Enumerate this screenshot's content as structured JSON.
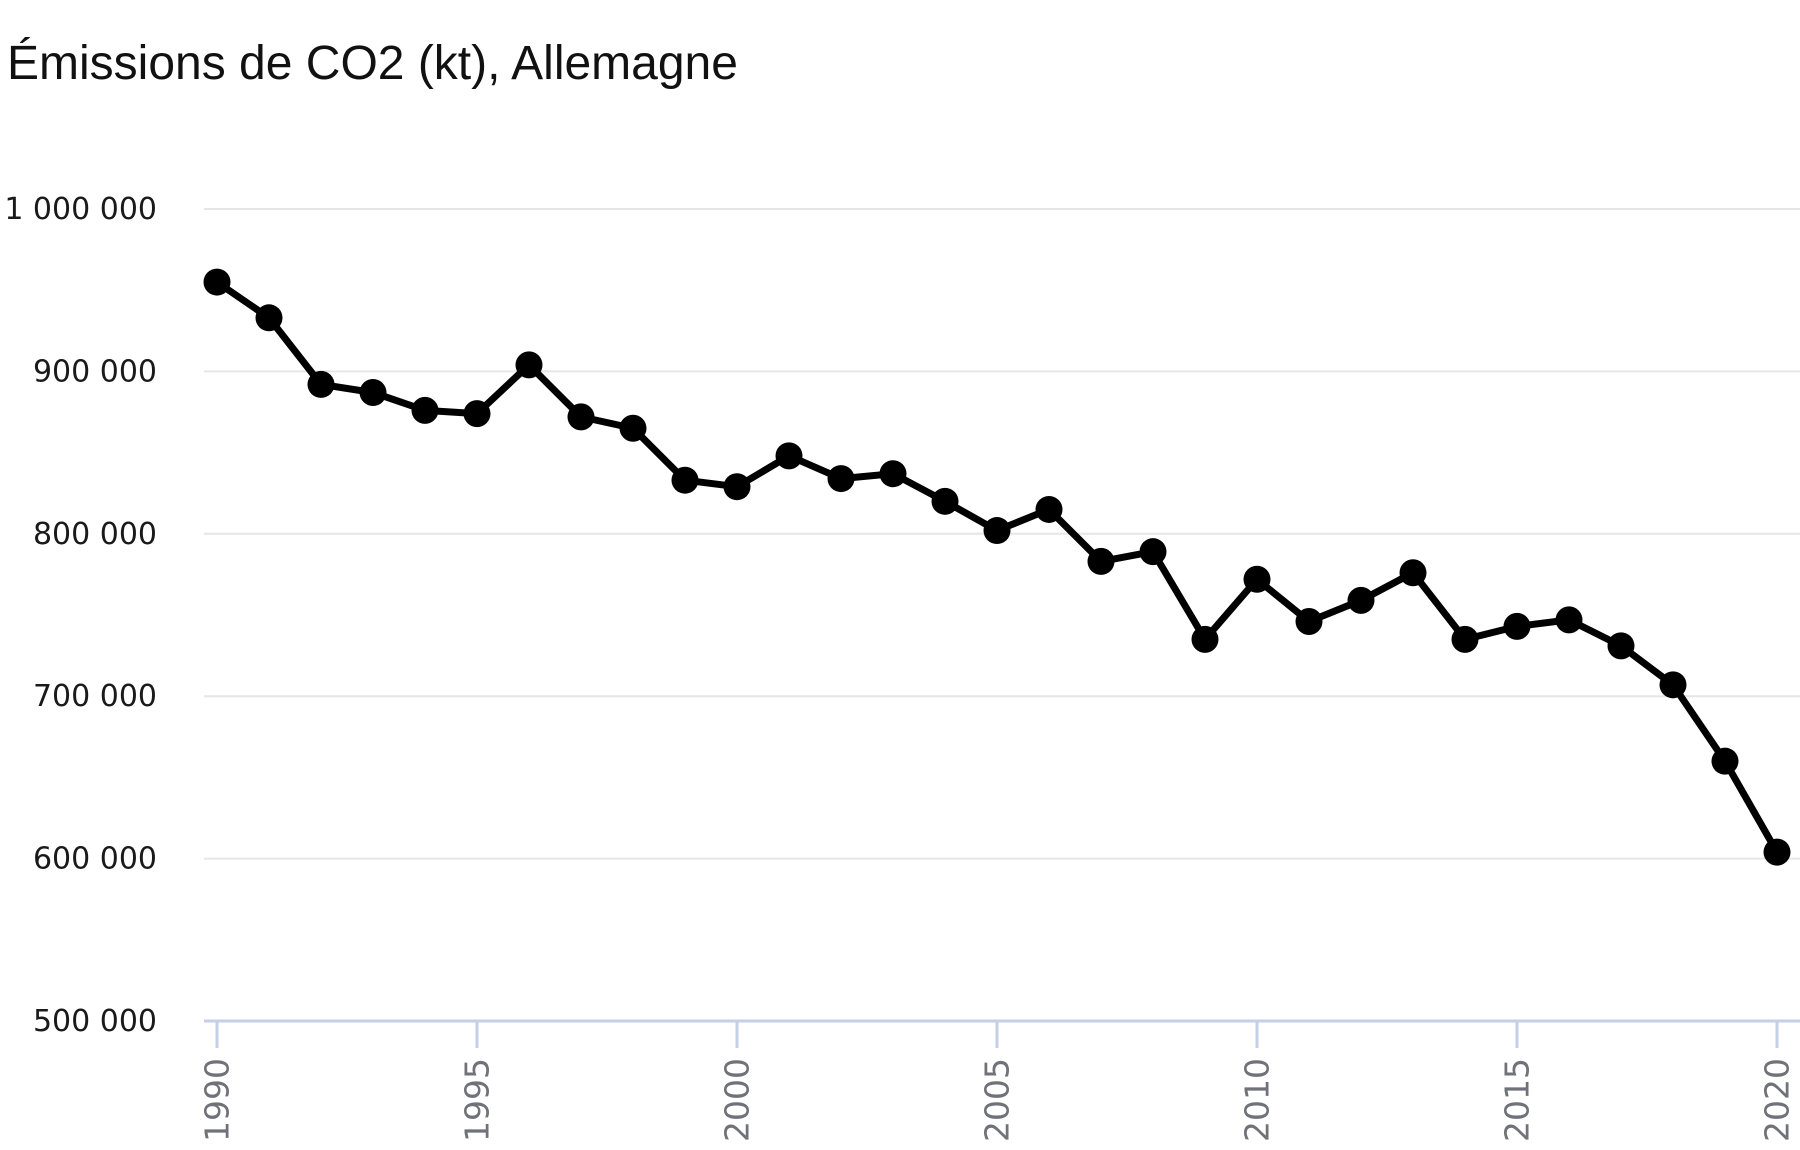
{
  "header": {
    "title": "Émissions de CO2 (kt), Allemagne"
  },
  "chart_data": {
    "type": "line",
    "title": "Émissions de CO2 (kt), Allemagne",
    "x": [
      1990,
      1991,
      1992,
      1993,
      1994,
      1995,
      1996,
      1997,
      1998,
      1999,
      2000,
      2001,
      2002,
      2003,
      2004,
      2005,
      2006,
      2007,
      2008,
      2009,
      2010,
      2011,
      2012,
      2013,
      2014,
      2015,
      2016,
      2017,
      2018,
      2019,
      2020
    ],
    "values": [
      955000,
      933000,
      892000,
      887000,
      876000,
      874000,
      904000,
      872000,
      865000,
      833000,
      829000,
      848000,
      834000,
      837000,
      820000,
      802000,
      815000,
      783000,
      789000,
      735000,
      772000,
      746000,
      759000,
      776000,
      735000,
      743000,
      747000,
      731000,
      707000,
      660000,
      604000
    ],
    "xlabel": "",
    "ylabel": "",
    "ylim": [
      500000,
      1000000
    ],
    "yticks": [
      {
        "value": 1000000,
        "label": "1 000 000"
      },
      {
        "value": 900000,
        "label": "900 000"
      },
      {
        "value": 800000,
        "label": "800 000"
      },
      {
        "value": 700000,
        "label": "700 000"
      },
      {
        "value": 600000,
        "label": "600 000"
      },
      {
        "value": 500000,
        "label": "500 000"
      }
    ],
    "xticks": [
      {
        "value": 1990,
        "label": "1990"
      },
      {
        "value": 1995,
        "label": "1995"
      },
      {
        "value": 2000,
        "label": "2000"
      },
      {
        "value": 2005,
        "label": "2005"
      },
      {
        "value": 2010,
        "label": "2010"
      },
      {
        "value": 2015,
        "label": "2015"
      },
      {
        "value": 2020,
        "label": "2020"
      }
    ],
    "grid": "horizontal",
    "legend": "none",
    "marker": "circle"
  },
  "style": {
    "background_color": "#ffffff",
    "title_color": "#111111",
    "line_color": "#000000",
    "marker_color": "#000000",
    "gridline_color": "#e6e6e6",
    "axis_color": "#c5cfe6",
    "x_tick_label_color": "#6f7278",
    "y_tick_label_color": "#1a1a1a"
  }
}
